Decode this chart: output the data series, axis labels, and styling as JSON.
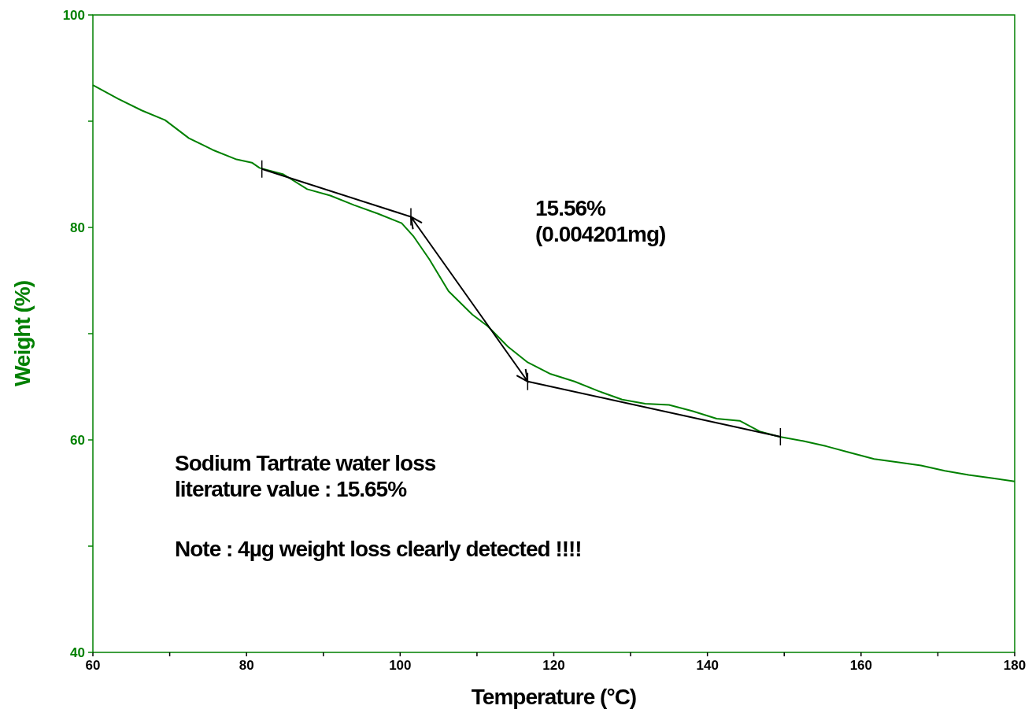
{
  "chart_data": {
    "type": "line",
    "xlabel": "Temperature (°C)",
    "ylabel": "Weight (%)",
    "xlim": [
      60,
      180
    ],
    "ylim": [
      40,
      100
    ],
    "xticks": [
      60,
      {
        "value": 70,
        "label": null
      },
      80,
      {
        "value": 90,
        "label": null
      },
      100,
      {
        "value": 110,
        "label": null
      },
      120,
      {
        "value": 130,
        "label": null
      },
      140,
      {
        "value": 150,
        "label": null
      },
      160,
      {
        "value": 170,
        "label": null
      },
      180
    ],
    "yticks": [
      40,
      {
        "value": 50,
        "label": null
      },
      60,
      {
        "value": 70,
        "label": null
      },
      80,
      {
        "value": 90,
        "label": null
      },
      100
    ],
    "grid": false,
    "series": [
      {
        "color": "#008000",
        "x": [
          60,
          63.3,
          66.4,
          69.4,
          72.5,
          75.6,
          78.7,
          80.7,
          81.7,
          84.8,
          87.9,
          90.9,
          94,
          97.1,
          100.2,
          101.7,
          103.8,
          106.3,
          109.4,
          111.4,
          114,
          116.6,
          119.6,
          122.7,
          125.8,
          128.9,
          131.9,
          135,
          138.1,
          141.2,
          144.2,
          146.8,
          149.4,
          152.4,
          155.5,
          158.6,
          161.7,
          164.7,
          167.8,
          170.9,
          174,
          177,
          180
        ],
        "values": [
          93.4,
          92.1,
          91,
          90.1,
          88.4,
          87.3,
          86.4,
          86.1,
          85.6,
          85,
          83.6,
          83,
          82.1,
          81.3,
          80.4,
          79.2,
          77,
          74,
          71.8,
          70.7,
          68.8,
          67.3,
          66.2,
          65.5,
          64.6,
          63.8,
          63.4,
          63.3,
          62.7,
          62,
          61.8,
          60.8,
          60.3,
          59.9,
          59.4,
          58.8,
          58.2,
          57.9,
          57.6,
          57.1,
          56.7,
          56.4,
          56.1
        ]
      },
      {
        "color": "#000000",
        "x": [
          82,
          101.4
        ],
        "values": [
          85.5,
          81
        ]
      },
      {
        "color": "#000000",
        "x": [
          116.6,
          149.5
        ],
        "values": [
          65.5,
          60.3
        ]
      }
    ],
    "annotations": [
      "15.56%\n(0.004201mg)",
      "Sodium Tartrate water loss\nliterature value : 15.65%",
      "Note : 4µg weight loss clearly detected !!!!"
    ]
  }
}
